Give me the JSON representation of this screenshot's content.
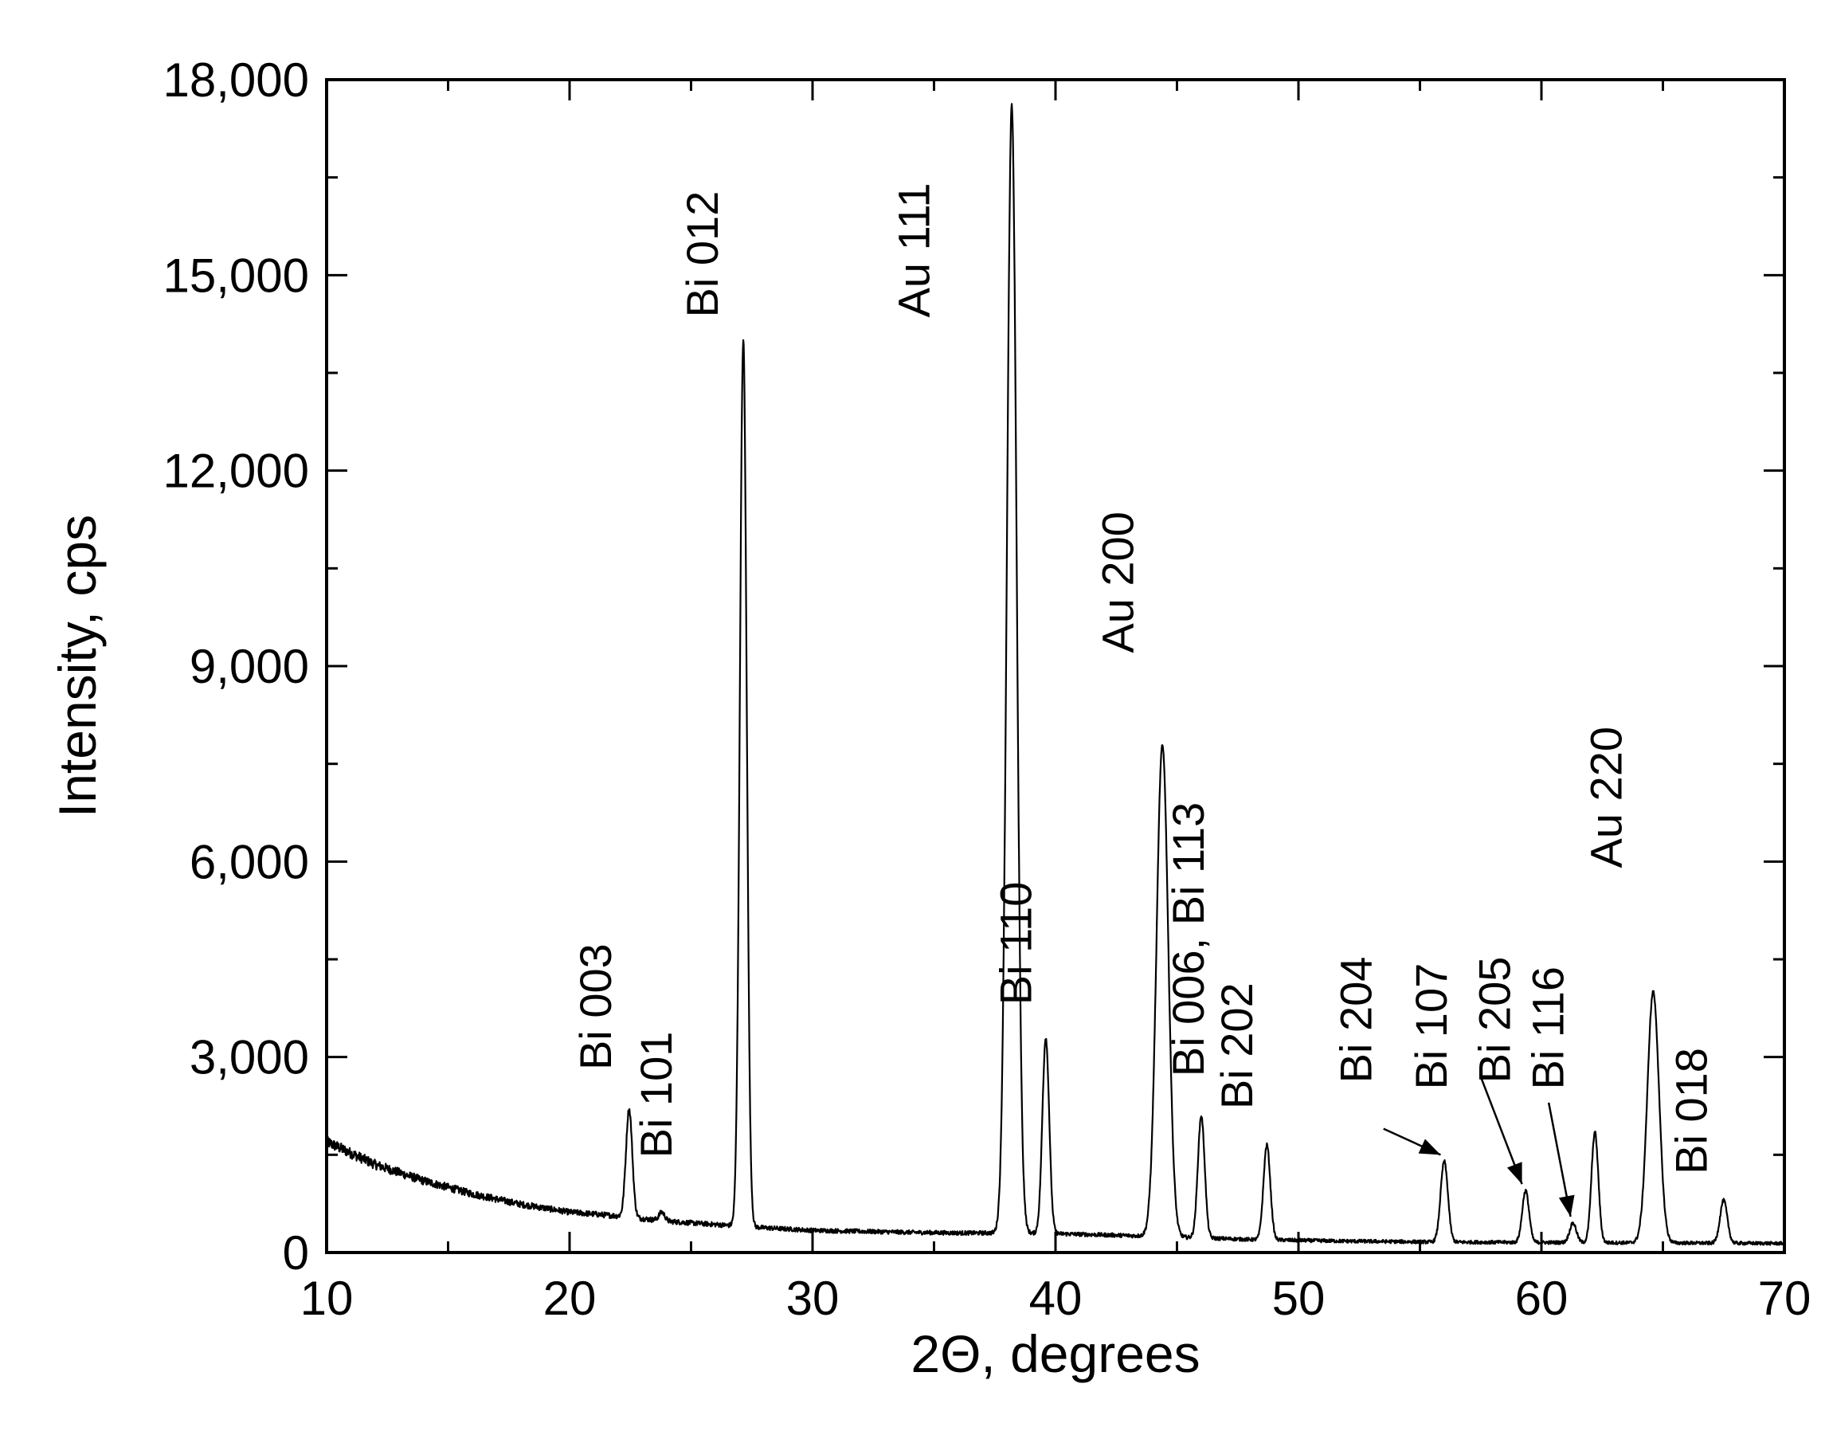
{
  "chart_data": {
    "type": "line",
    "title": "",
    "xlabel": "2Θ, degrees",
    "ylabel": "Intensity, cps",
    "xlim": [
      10,
      70
    ],
    "ylim": [
      0,
      18000
    ],
    "x_ticks": [
      10,
      20,
      30,
      40,
      50,
      60,
      70
    ],
    "x_tick_labels": [
      "10",
      "20",
      "30",
      "40",
      "50",
      "60",
      "70"
    ],
    "y_ticks": [
      0,
      3000,
      6000,
      9000,
      12000,
      15000,
      18000
    ],
    "y_tick_labels": [
      "0",
      "3,000",
      "6,000",
      "9,000",
      "12,000",
      "15,000",
      "18,000"
    ],
    "grid": false,
    "series": [
      {
        "color": "#000000",
        "background_points": [
          [
            10,
            1700
          ],
          [
            12,
            1350
          ],
          [
            14,
            1100
          ],
          [
            16,
            900
          ],
          [
            18,
            740
          ],
          [
            20,
            620
          ],
          [
            22,
            560
          ],
          [
            24,
            480
          ],
          [
            26,
            430
          ],
          [
            28,
            380
          ],
          [
            30,
            340
          ],
          [
            34,
            310
          ],
          [
            36,
            300
          ],
          [
            38,
            300
          ],
          [
            40,
            290
          ],
          [
            44,
            250
          ],
          [
            48,
            200
          ],
          [
            52,
            175
          ],
          [
            56,
            160
          ],
          [
            60,
            155
          ],
          [
            64,
            150
          ],
          [
            70,
            140
          ]
        ],
        "peaks": [
          {
            "x": 22.45,
            "y": 2200,
            "width": 0.13
          },
          {
            "x": 23.8,
            "y": 620,
            "width": 0.12
          },
          {
            "x": 27.15,
            "y": 14000,
            "width": 0.14
          },
          {
            "x": 38.2,
            "y": 17600,
            "width": 0.2
          },
          {
            "x": 39.6,
            "y": 3300,
            "width": 0.14
          },
          {
            "x": 44.4,
            "y": 7800,
            "width": 0.24
          },
          {
            "x": 46.0,
            "y": 2100,
            "width": 0.14
          },
          {
            "x": 48.7,
            "y": 1650,
            "width": 0.14
          },
          {
            "x": 56.0,
            "y": 1400,
            "width": 0.15
          },
          {
            "x": 59.35,
            "y": 950,
            "width": 0.14
          },
          {
            "x": 61.3,
            "y": 450,
            "width": 0.14
          },
          {
            "x": 62.2,
            "y": 1850,
            "width": 0.14
          },
          {
            "x": 64.6,
            "y": 4000,
            "width": 0.24
          },
          {
            "x": 67.5,
            "y": 800,
            "width": 0.15
          }
        ]
      }
    ],
    "annotations": [
      {
        "text": "Bi 003",
        "x": 21.7,
        "y": 2800,
        "rotation": -90
      },
      {
        "text": "Bi 101",
        "x": 24.2,
        "y": 1450,
        "rotation": -90
      },
      {
        "text": "Bi 012",
        "x": 26.1,
        "y": 14350,
        "rotation": -90
      },
      {
        "text": "Au 111",
        "x": 34.8,
        "y": 14350,
        "rotation": -90
      },
      {
        "text": "Bi 110",
        "x": 39.0,
        "y": 3800,
        "rotation": -90
      },
      {
        "text": "Au 200",
        "x": 43.2,
        "y": 9200,
        "rotation": -90
      },
      {
        "text": "Bi 006, Bi 113",
        "x": 46.1,
        "y": 2700,
        "rotation": -90
      },
      {
        "text": "Bi 202",
        "x": 48.1,
        "y": 2200,
        "rotation": -90
      },
      {
        "text": "Bi 204",
        "x": 53.0,
        "y": 2600,
        "rotation": -90
      },
      {
        "text": "Bi 107",
        "x": 56.1,
        "y": 2500,
        "rotation": -90
      },
      {
        "text": "Bi 205",
        "x": 58.7,
        "y": 2600,
        "rotation": -90
      },
      {
        "text": "Bi 116",
        "x": 60.9,
        "y": 2500,
        "rotation": -90
      },
      {
        "text": "Au 220",
        "x": 63.3,
        "y": 5900,
        "rotation": -90
      },
      {
        "text": "Bi 018",
        "x": 66.8,
        "y": 1200,
        "rotation": -90
      }
    ],
    "arrows": [
      {
        "from": [
          53.5,
          1900
        ],
        "to": [
          55.85,
          1500
        ]
      },
      {
        "from": [
          57.5,
          2700
        ],
        "to": [
          59.2,
          1050
        ]
      },
      {
        "from": [
          60.3,
          2300
        ],
        "to": [
          61.2,
          550
        ]
      }
    ]
  }
}
